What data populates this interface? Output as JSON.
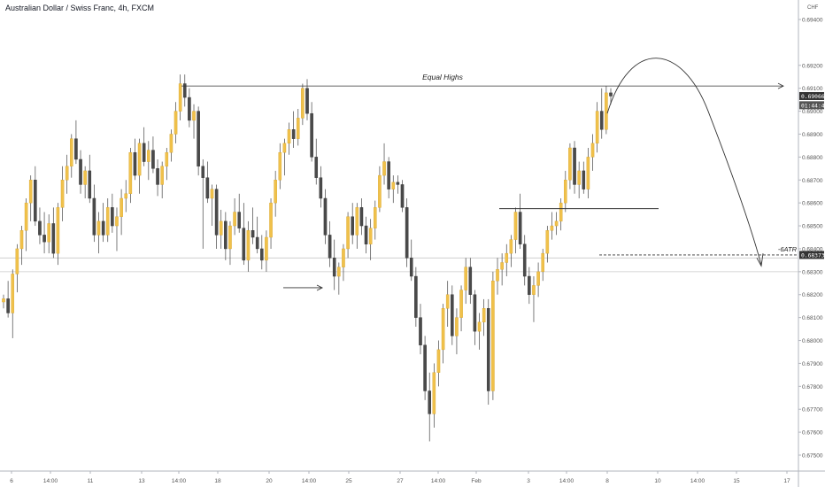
{
  "header": {
    "title": "Australian Dollar / Swiss Franc, 4h, FXCM"
  },
  "colors": {
    "up": "#f0c14b",
    "down": "#4a4a4a",
    "wick": "#444444",
    "axis_text": "#555555",
    "line": "#333333",
    "tag_bg": "#333333",
    "tag_text": "#ffffff"
  },
  "chart_data": {
    "type": "candlestick",
    "title": "Australian Dollar / Swiss Franc, 4h, FXCM",
    "ylabel": "CHF",
    "ylim": [
      0.6745,
      0.6952
    ],
    "y_ticks": [
      "0.69400",
      "0.69200",
      "0.69100",
      "0.69000",
      "0.68900",
      "0.68800",
      "0.68700",
      "0.68600",
      "0.68500",
      "0.68400",
      "0.68300",
      "0.68200",
      "0.68100",
      "0.68000",
      "0.67900",
      "0.67800",
      "0.67700",
      "0.67600",
      "0.67500"
    ],
    "x_ticks": [
      "6",
      "14:00",
      "11",
      "13",
      "14:00",
      "18",
      "20",
      "14:00",
      "25",
      "27",
      "14:00",
      "Feb",
      "3",
      "14:00",
      "8",
      "10",
      "14:00",
      "15",
      "17"
    ],
    "price_tags": {
      "last": "0.69066",
      "countdown": "01:44:47",
      "level": "0.68373"
    },
    "annotations": {
      "equal_highs": "Equal Highs",
      "atr": "-6ATR"
    },
    "candles": [
      [
        0.68168,
        0.682,
        0.6814,
        0.68182
      ],
      [
        0.68182,
        0.6826,
        0.681,
        0.6812
      ],
      [
        0.6812,
        0.6831,
        0.6801,
        0.6829
      ],
      [
        0.6829,
        0.6842,
        0.6821,
        0.684
      ],
      [
        0.684,
        0.685,
        0.6833,
        0.6848
      ],
      [
        0.6848,
        0.6862,
        0.6839,
        0.686
      ],
      [
        0.686,
        0.6872,
        0.6852,
        0.687
      ],
      [
        0.687,
        0.6876,
        0.685,
        0.6852
      ],
      [
        0.6852,
        0.6858,
        0.6842,
        0.6846
      ],
      [
        0.6846,
        0.6856,
        0.6838,
        0.6843
      ],
      [
        0.6843,
        0.6855,
        0.6838,
        0.6851
      ],
      [
        0.6851,
        0.6858,
        0.6836,
        0.6838
      ],
      [
        0.6838,
        0.686,
        0.6833,
        0.6858
      ],
      [
        0.6858,
        0.6876,
        0.6852,
        0.687
      ],
      [
        0.687,
        0.6881,
        0.6864,
        0.6876
      ],
      [
        0.6876,
        0.689,
        0.6871,
        0.6888
      ],
      [
        0.6888,
        0.6896,
        0.6877,
        0.6879
      ],
      [
        0.6879,
        0.6883,
        0.6864,
        0.6868
      ],
      [
        0.6868,
        0.6876,
        0.6862,
        0.6874
      ],
      [
        0.6874,
        0.6881,
        0.686,
        0.6862
      ],
      [
        0.6862,
        0.6868,
        0.6843,
        0.6846
      ],
      [
        0.6846,
        0.6856,
        0.6838,
        0.6852
      ],
      [
        0.6852,
        0.686,
        0.6843,
        0.6846
      ],
      [
        0.6846,
        0.6862,
        0.6843,
        0.6858
      ],
      [
        0.6858,
        0.6864,
        0.6847,
        0.685
      ],
      [
        0.685,
        0.6858,
        0.6839,
        0.6854
      ],
      [
        0.6854,
        0.6866,
        0.6846,
        0.6862
      ],
      [
        0.6862,
        0.687,
        0.6856,
        0.6864
      ],
      [
        0.6864,
        0.6884,
        0.686,
        0.6882
      ],
      [
        0.6882,
        0.6888,
        0.687,
        0.6872
      ],
      [
        0.6872,
        0.6888,
        0.6864,
        0.6886
      ],
      [
        0.6886,
        0.6893,
        0.6876,
        0.6878
      ],
      [
        0.6878,
        0.6887,
        0.687,
        0.6883
      ],
      [
        0.6883,
        0.6889,
        0.6873,
        0.6875
      ],
      [
        0.6875,
        0.6879,
        0.6863,
        0.6868
      ],
      [
        0.6868,
        0.6878,
        0.6862,
        0.6876
      ],
      [
        0.6876,
        0.6884,
        0.687,
        0.6882
      ],
      [
        0.6882,
        0.6892,
        0.6878,
        0.689
      ],
      [
        0.689,
        0.6904,
        0.6886,
        0.69
      ],
      [
        0.69,
        0.6916,
        0.6896,
        0.6912
      ],
      [
        0.6912,
        0.6916,
        0.6902,
        0.6906
      ],
      [
        0.6906,
        0.691,
        0.6893,
        0.6896
      ],
      [
        0.6896,
        0.6903,
        0.6888,
        0.69
      ],
      [
        0.69,
        0.6902,
        0.6872,
        0.6876
      ],
      [
        0.6876,
        0.6879,
        0.684,
        0.6871
      ],
      [
        0.6871,
        0.6878,
        0.686,
        0.6862
      ],
      [
        0.6862,
        0.6868,
        0.685,
        0.6866
      ],
      [
        0.6866,
        0.6868,
        0.684,
        0.6846
      ],
      [
        0.6846,
        0.6857,
        0.684,
        0.6852
      ],
      [
        0.6852,
        0.6856,
        0.6835,
        0.684
      ],
      [
        0.684,
        0.6852,
        0.6833,
        0.685
      ],
      [
        0.685,
        0.6862,
        0.6846,
        0.6856
      ],
      [
        0.6856,
        0.6864,
        0.6847,
        0.6849
      ],
      [
        0.6849,
        0.686,
        0.6833,
        0.6835
      ],
      [
        0.6835,
        0.6852,
        0.683,
        0.6848
      ],
      [
        0.6848,
        0.6858,
        0.6842,
        0.6845
      ],
      [
        0.6845,
        0.6854,
        0.6838,
        0.684
      ],
      [
        0.684,
        0.6846,
        0.6831,
        0.6835
      ],
      [
        0.6835,
        0.6848,
        0.683,
        0.6845
      ],
      [
        0.6845,
        0.6862,
        0.684,
        0.686
      ],
      [
        0.686,
        0.6874,
        0.6854,
        0.687
      ],
      [
        0.687,
        0.6886,
        0.6866,
        0.6882
      ],
      [
        0.6882,
        0.6888,
        0.6872,
        0.6886
      ],
      [
        0.6886,
        0.6895,
        0.6881,
        0.6892
      ],
      [
        0.6892,
        0.69,
        0.6884,
        0.6888
      ],
      [
        0.6888,
        0.6901,
        0.6885,
        0.6897
      ],
      [
        0.6897,
        0.6912,
        0.6894,
        0.691
      ],
      [
        0.691,
        0.6914,
        0.6896,
        0.6899
      ],
      [
        0.6899,
        0.6904,
        0.6878,
        0.688
      ],
      [
        0.688,
        0.6888,
        0.6868,
        0.6871
      ],
      [
        0.6871,
        0.6876,
        0.6858,
        0.6862
      ],
      [
        0.6862,
        0.6866,
        0.6842,
        0.6846
      ],
      [
        0.6846,
        0.6852,
        0.6832,
        0.6836
      ],
      [
        0.6836,
        0.6844,
        0.6822,
        0.6828
      ],
      [
        0.6828,
        0.6834,
        0.682,
        0.6832
      ],
      [
        0.6832,
        0.6842,
        0.6826,
        0.684
      ],
      [
        0.684,
        0.6856,
        0.6836,
        0.6854
      ],
      [
        0.6854,
        0.686,
        0.6842,
        0.6846
      ],
      [
        0.6846,
        0.686,
        0.684,
        0.6858
      ],
      [
        0.6858,
        0.6862,
        0.6846,
        0.685
      ],
      [
        0.685,
        0.6854,
        0.6838,
        0.6842
      ],
      [
        0.6842,
        0.6853,
        0.6835,
        0.6849
      ],
      [
        0.6849,
        0.6861,
        0.6844,
        0.6858
      ],
      [
        0.6858,
        0.6876,
        0.6856,
        0.6872
      ],
      [
        0.6872,
        0.6886,
        0.6868,
        0.6878
      ],
      [
        0.6878,
        0.688,
        0.6862,
        0.6866
      ],
      [
        0.6866,
        0.6872,
        0.686,
        0.6869
      ],
      [
        0.6869,
        0.6872,
        0.6864,
        0.6868
      ],
      [
        0.6868,
        0.687,
        0.6856,
        0.6858
      ],
      [
        0.6858,
        0.6862,
        0.6832,
        0.6836
      ],
      [
        0.6836,
        0.6844,
        0.6826,
        0.6828
      ],
      [
        0.6828,
        0.6832,
        0.6806,
        0.681
      ],
      [
        0.681,
        0.6816,
        0.6794,
        0.6798
      ],
      [
        0.6798,
        0.6802,
        0.6774,
        0.6778
      ],
      [
        0.6778,
        0.6786,
        0.6756,
        0.6768
      ],
      [
        0.6768,
        0.679,
        0.6762,
        0.6786
      ],
      [
        0.6786,
        0.68,
        0.678,
        0.6796
      ],
      [
        0.6796,
        0.6816,
        0.679,
        0.6814
      ],
      [
        0.6814,
        0.6826,
        0.6806,
        0.682
      ],
      [
        0.682,
        0.6824,
        0.6798,
        0.6802
      ],
      [
        0.6802,
        0.6814,
        0.6794,
        0.681
      ],
      [
        0.681,
        0.6824,
        0.6804,
        0.6822
      ],
      [
        0.6822,
        0.6836,
        0.6816,
        0.6832
      ],
      [
        0.6832,
        0.6836,
        0.6816,
        0.682
      ],
      [
        0.682,
        0.6822,
        0.6798,
        0.6804
      ],
      [
        0.6804,
        0.6812,
        0.6796,
        0.6808
      ],
      [
        0.6808,
        0.6818,
        0.6802,
        0.6814
      ],
      [
        0.6814,
        0.6818,
        0.6772,
        0.6778
      ],
      [
        0.6778,
        0.683,
        0.6774,
        0.6826
      ],
      [
        0.6826,
        0.6836,
        0.682,
        0.6831
      ],
      [
        0.6831,
        0.6838,
        0.6824,
        0.6834
      ],
      [
        0.6834,
        0.6842,
        0.6828,
        0.6838
      ],
      [
        0.6838,
        0.6846,
        0.6832,
        0.6844
      ],
      [
        0.6844,
        0.6858,
        0.6838,
        0.6856
      ],
      [
        0.6856,
        0.6864,
        0.684,
        0.6842
      ],
      [
        0.6842,
        0.6846,
        0.6824,
        0.6828
      ],
      [
        0.6828,
        0.6832,
        0.6816,
        0.682
      ],
      [
        0.682,
        0.6828,
        0.6808,
        0.6824
      ],
      [
        0.6824,
        0.6834,
        0.6819,
        0.683
      ],
      [
        0.683,
        0.684,
        0.6826,
        0.6838
      ],
      [
        0.6838,
        0.685,
        0.6834,
        0.6848
      ],
      [
        0.6848,
        0.6856,
        0.6844,
        0.685
      ],
      [
        0.685,
        0.6856,
        0.6846,
        0.6852
      ],
      [
        0.6852,
        0.6862,
        0.6848,
        0.686
      ],
      [
        0.686,
        0.6874,
        0.6856,
        0.687
      ],
      [
        0.687,
        0.6886,
        0.6866,
        0.6884
      ],
      [
        0.6884,
        0.6887,
        0.6864,
        0.6868
      ],
      [
        0.6868,
        0.6878,
        0.6862,
        0.6874
      ],
      [
        0.6874,
        0.6878,
        0.6864,
        0.6866
      ],
      [
        0.6866,
        0.6884,
        0.6862,
        0.688
      ],
      [
        0.688,
        0.689,
        0.6874,
        0.6886
      ],
      [
        0.6886,
        0.6904,
        0.6882,
        0.69
      ],
      [
        0.69,
        0.691,
        0.6888,
        0.6892
      ],
      [
        0.6892,
        0.6911,
        0.689,
        0.6908
      ],
      [
        0.6908,
        0.691,
        0.6903,
        0.69066
      ]
    ],
    "levels": [
      0.6911,
      0.6836,
      0.683
    ]
  }
}
